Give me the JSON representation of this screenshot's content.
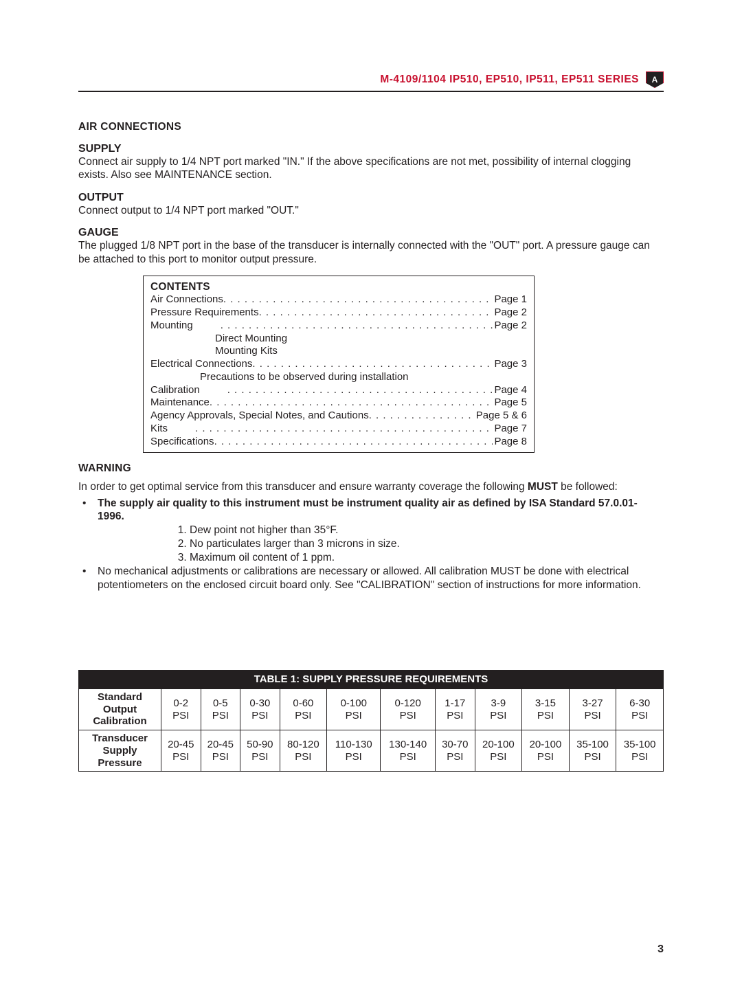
{
  "header": {
    "title": "M-4109/1104 IP510, EP510, IP511, EP511 SERIES",
    "badge": "A"
  },
  "sections": {
    "air_connections": {
      "heading": "AIR CONNECTIONS",
      "supply_h": "SUPPLY",
      "supply_p": "Connect air supply to 1/4 NPT port marked \"IN.\" If the above specifications are not met, possibility of internal clogging exists. Also see MAINTENANCE section.",
      "output_h": "OUTPUT",
      "output_p": "Connect output to 1/4 NPT port marked \"OUT.\"",
      "gauge_h": "GAUGE",
      "gauge_p": "The plugged 1/8 NPT port in the base of the transducer is internally connected with the \"OUT\" port. A pressure gauge can be attached to this port to monitor output pressure."
    },
    "contents": {
      "title": "CONTENTS",
      "rows": [
        {
          "label": "Air Connections",
          "page": "Page 1",
          "indent": 0,
          "dots": true
        },
        {
          "label": "Pressure Requirements",
          "page": "Page 2",
          "indent": 0,
          "dots": true
        },
        {
          "label": "Mounting",
          "page": "Page 2",
          "indent": 0,
          "dots": true,
          "gap": true
        },
        {
          "label": "Direct Mounting",
          "page": "",
          "indent": 1,
          "dots": false
        },
        {
          "label": "Mounting Kits",
          "page": "",
          "indent": 1,
          "dots": false
        },
        {
          "label": "Electrical Connections",
          "page": "Page 3",
          "indent": 0,
          "dots": true
        },
        {
          "label": "Precautions to be observed during installation",
          "page": "",
          "indent": 2,
          "dots": false
        },
        {
          "label": "Calibration",
          "page": "Page 4",
          "indent": 0,
          "dots": true,
          "gap": true
        },
        {
          "label": "Maintenance",
          "page": "Page 5",
          "indent": 0,
          "dots": true
        },
        {
          "label": "Agency Approvals, Special Notes, and Cautions",
          "page": "Page 5 & 6",
          "indent": 0,
          "dots": true
        },
        {
          "label": "Kits",
          "page": "Page 7",
          "indent": 0,
          "dots": true,
          "gap": true
        },
        {
          "label": "Specifications",
          "page": "Page 8",
          "indent": 0,
          "dots": true
        }
      ]
    },
    "warning": {
      "heading": "WARNING",
      "intro_prefix": "In order to get optimal service from this transducer and ensure warranty coverage the following ",
      "intro_bold": "MUST",
      "intro_suffix": " be followed:",
      "bullet1": "The supply air quality to this instrument must be instrument quality air as defined by ISA Standard 57.0.01-1996.",
      "numbered": [
        "Dew point not higher than 35°F.",
        "No particulates larger than 3 microns in size.",
        "Maximum oil content of 1 ppm."
      ],
      "bullet2": "No mechanical adjustments or calibrations are necessary or allowed. All calibration MUST be done with electrical potentiometers on the enclosed circuit board only. See \"CALIBRATION\" section of instructions for more information."
    }
  },
  "table": {
    "title": "TABLE 1: SUPPLY PRESSURE REQUIREMENTS",
    "row1_head_l1": "Standard Output",
    "row1_head_l2": "Calibration",
    "row2_head_l1": "Transducer",
    "row2_head_l2": "Supply Pressure",
    "cols_top": [
      "0-2",
      "0-5",
      "0-30",
      "0-60",
      "0-100",
      "0-120",
      "1-17",
      "3-9",
      "3-15",
      "3-27",
      "6-30"
    ],
    "cols_bot": [
      "20-45",
      "20-45",
      "50-90",
      "80-120",
      "110-130",
      "130-140",
      "30-70",
      "20-100",
      "20-100",
      "35-100",
      "35-100"
    ],
    "unit": "PSI"
  },
  "page_number": "3"
}
